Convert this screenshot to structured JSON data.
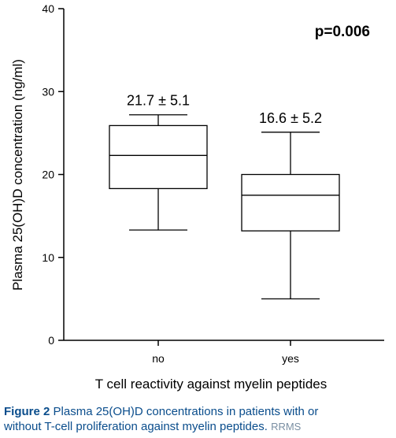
{
  "chart_data": {
    "type": "box",
    "categories": [
      "no",
      "yes"
    ],
    "xlabel": "T cell reactivity against myelin peptides",
    "ylabel": "Plasma 25(OH)D concentration (ng/ml)",
    "ylim": [
      0,
      40
    ],
    "yticks": [
      0,
      10,
      20,
      30,
      40
    ],
    "boxes": [
      {
        "category": "no",
        "whisker_low": 13.3,
        "q1": 18.3,
        "median": 22.3,
        "q3": 25.9,
        "whisker_high": 27.2,
        "label": "21.7 ± 5.1"
      },
      {
        "category": "yes",
        "whisker_low": 5.0,
        "q1": 13.2,
        "median": 17.5,
        "q3": 20.0,
        "whisker_high": 25.1,
        "label": "16.6 ± 5.2"
      }
    ],
    "annotation": "p=0.006",
    "grid": false
  },
  "caption": {
    "figure_number": "Figure 2",
    "title": "Plasma 25(OH)D concentrations in patients with or",
    "title_line2": "without T-cell proliferation against myelin peptides.",
    "trailing": "RRMS"
  }
}
